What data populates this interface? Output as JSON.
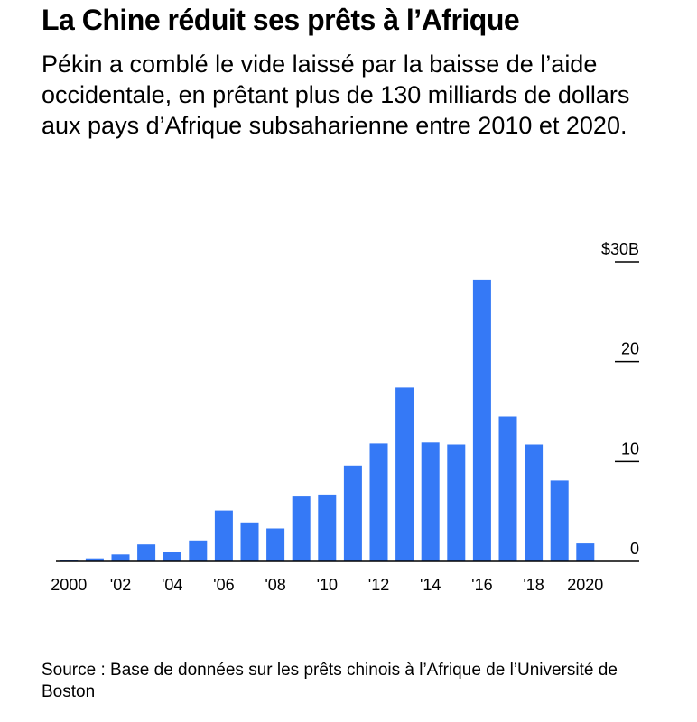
{
  "header": {
    "title": "La Chine réduit ses prêts à l’Afrique",
    "subtitle": "Pékin a comblé le vide laissé par la baisse de l’aide occidentale, en prêtant plus de 130 milliards de dollars aux pays d’Afrique subsaharienne entre 2010 et 2020."
  },
  "footer": {
    "source": "Source : Base de données sur les prêts chinois à l’Afrique de l’Université de Boston"
  },
  "chart_data": {
    "type": "bar",
    "categories": [
      "2000",
      "2001",
      "2002",
      "2003",
      "2004",
      "2005",
      "2006",
      "2007",
      "2008",
      "2009",
      "2010",
      "2011",
      "2012",
      "2013",
      "2014",
      "2015",
      "2016",
      "2017",
      "2018",
      "2019",
      "2020"
    ],
    "values": [
      0.1,
      0.3,
      0.7,
      1.7,
      0.9,
      2.1,
      5.1,
      3.9,
      3.3,
      6.5,
      6.7,
      9.6,
      11.8,
      17.4,
      11.9,
      11.7,
      28.2,
      14.5,
      11.7,
      8.1,
      1.8
    ],
    "x_tick_labels": [
      {
        "category": "2000",
        "label": "2000"
      },
      {
        "category": "2002",
        "label": "'02"
      },
      {
        "category": "2004",
        "label": "'04"
      },
      {
        "category": "2006",
        "label": "'06"
      },
      {
        "category": "2008",
        "label": "'08"
      },
      {
        "category": "2010",
        "label": "'10"
      },
      {
        "category": "2012",
        "label": "'12"
      },
      {
        "category": "2014",
        "label": "'14"
      },
      {
        "category": "2016",
        "label": "'16"
      },
      {
        "category": "2018",
        "label": "'18"
      },
      {
        "category": "2020",
        "label": "2020"
      }
    ],
    "y_ticks": [
      {
        "value": 0,
        "label": "0"
      },
      {
        "value": 10,
        "label": "10"
      },
      {
        "value": 20,
        "label": "20"
      },
      {
        "value": 30,
        "label": "$30B"
      }
    ],
    "ylim": [
      0,
      30
    ],
    "y_axis_position": "right",
    "title": "",
    "xlabel": "",
    "ylabel": "",
    "bar_color": "#3579f6",
    "axis_color": "#000000",
    "grid": false,
    "legend": "none"
  }
}
